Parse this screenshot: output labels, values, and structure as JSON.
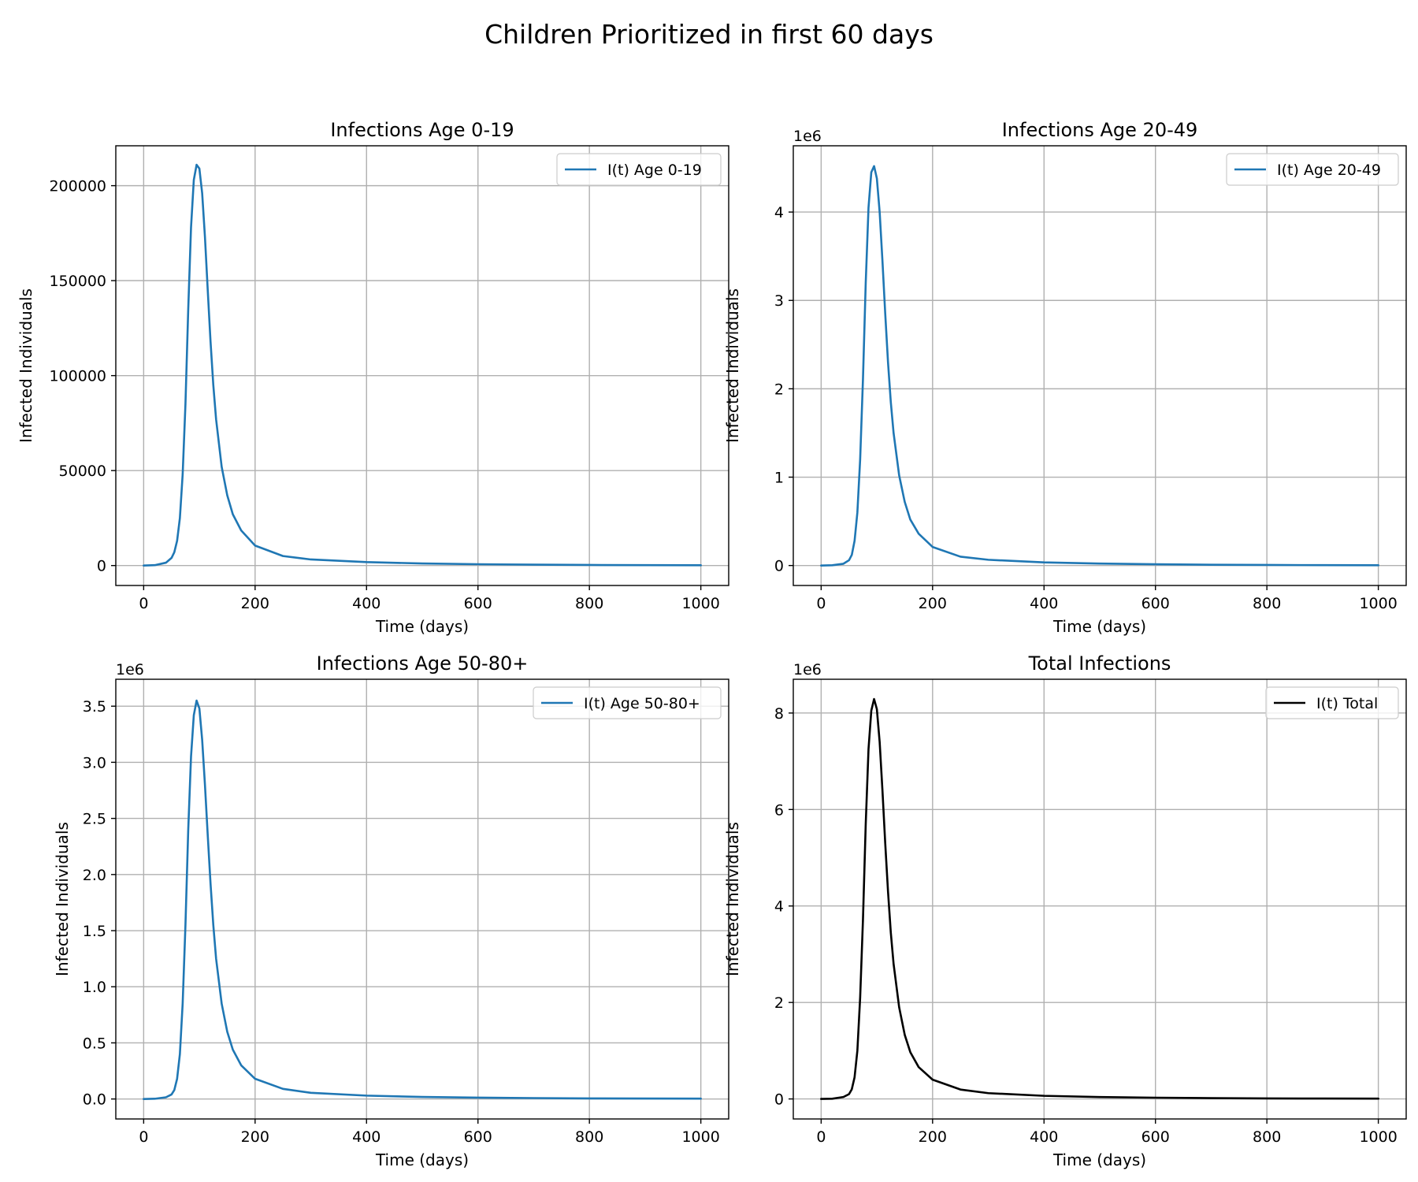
{
  "suptitle": "Children Prioritized in first 60 days",
  "colors": {
    "blue": "#1f77b4",
    "black": "#000000",
    "grid": "#b0b0b0"
  },
  "chart_data": [
    {
      "type": "line",
      "title": "Infections Age 0-19",
      "xlabel": "Time (days)",
      "ylabel": "Infected Individuals",
      "offset_label": "",
      "xlim": [
        -50,
        1050
      ],
      "ylim": [
        -10500,
        221000
      ],
      "x_ticks": [
        0,
        200,
        400,
        600,
        800,
        1000
      ],
      "y_ticks": [
        0,
        50000,
        100000,
        150000,
        200000
      ],
      "y_tick_labels": [
        "0",
        "50000",
        "100000",
        "150000",
        "200000"
      ],
      "grid": true,
      "legend_position": "upper right",
      "series": [
        {
          "name": "I(t) Age 0-19",
          "color": "#1f77b4",
          "x": [
            0,
            20,
            40,
            50,
            55,
            60,
            65,
            70,
            75,
            80,
            85,
            90,
            95,
            100,
            105,
            110,
            115,
            120,
            125,
            130,
            140,
            150,
            160,
            175,
            200,
            250,
            300,
            400,
            500,
            600,
            700,
            800,
            900,
            1000
          ],
          "y": [
            0,
            200,
            1500,
            4000,
            7000,
            13000,
            25000,
            48000,
            85000,
            135000,
            178000,
            203000,
            211000,
            209000,
            196000,
            173000,
            145000,
            118000,
            95000,
            77000,
            52000,
            37000,
            27000,
            18500,
            10500,
            5000,
            3200,
            1800,
            1100,
            700,
            450,
            300,
            200,
            150
          ]
        }
      ]
    },
    {
      "type": "line",
      "title": "Infections Age 20-49",
      "xlabel": "Time (days)",
      "ylabel": "Infected Individuals",
      "offset_label": "1e6",
      "xlim": [
        -50,
        1050
      ],
      "ylim": [
        -0.226,
        4.75
      ],
      "x_ticks": [
        0,
        200,
        400,
        600,
        800,
        1000
      ],
      "y_ticks": [
        0,
        1,
        2,
        3,
        4
      ],
      "y_tick_labels": [
        "0",
        "1",
        "2",
        "3",
        "4"
      ],
      "grid": true,
      "legend_position": "upper right",
      "series": [
        {
          "name": "I(t) Age 20-49",
          "color": "#1f77b4",
          "x": [
            0,
            20,
            40,
            50,
            55,
            60,
            65,
            70,
            75,
            80,
            85,
            90,
            95,
            100,
            105,
            110,
            115,
            120,
            125,
            130,
            140,
            150,
            160,
            175,
            200,
            250,
            300,
            400,
            500,
            600,
            700,
            800,
            900,
            1000
          ],
          "y": [
            0,
            0.003,
            0.02,
            0.06,
            0.12,
            0.28,
            0.6,
            1.2,
            2.1,
            3.2,
            4.05,
            4.45,
            4.52,
            4.38,
            4.0,
            3.45,
            2.85,
            2.3,
            1.85,
            1.5,
            1.02,
            0.72,
            0.52,
            0.36,
            0.21,
            0.1,
            0.065,
            0.035,
            0.022,
            0.014,
            0.009,
            0.006,
            0.004,
            0.003
          ]
        }
      ]
    },
    {
      "type": "line",
      "title": "Infections Age 50-80+",
      "xlabel": "Time (days)",
      "ylabel": "Infected Individuals",
      "offset_label": "1e6",
      "xlim": [
        -50,
        1050
      ],
      "ylim": [
        -0.178,
        3.74
      ],
      "x_ticks": [
        0,
        200,
        400,
        600,
        800,
        1000
      ],
      "y_ticks": [
        0,
        0.5,
        1.0,
        1.5,
        2.0,
        2.5,
        3.0,
        3.5
      ],
      "y_tick_labels": [
        "0.0",
        "0.5",
        "1.0",
        "1.5",
        "2.0",
        "2.5",
        "3.0",
        "3.5"
      ],
      "grid": true,
      "legend_position": "upper right",
      "series": [
        {
          "name": "I(t) Age 50-80+",
          "color": "#1f77b4",
          "x": [
            0,
            20,
            40,
            50,
            55,
            60,
            65,
            70,
            75,
            80,
            85,
            90,
            95,
            100,
            105,
            110,
            115,
            120,
            125,
            130,
            140,
            150,
            160,
            175,
            200,
            250,
            300,
            400,
            500,
            600,
            700,
            800,
            900,
            1000
          ],
          "y": [
            0,
            0.002,
            0.015,
            0.04,
            0.08,
            0.18,
            0.4,
            0.85,
            1.55,
            2.4,
            3.05,
            3.42,
            3.55,
            3.48,
            3.2,
            2.8,
            2.35,
            1.92,
            1.55,
            1.25,
            0.85,
            0.6,
            0.44,
            0.3,
            0.18,
            0.09,
            0.055,
            0.03,
            0.018,
            0.012,
            0.008,
            0.005,
            0.004,
            0.003
          ]
        }
      ]
    },
    {
      "type": "line",
      "title": "Total Infections",
      "xlabel": "Time (days)",
      "ylabel": "Infected Individuals",
      "offset_label": "1e6",
      "xlim": [
        -50,
        1050
      ],
      "ylim": [
        -0.415,
        8.7
      ],
      "x_ticks": [
        0,
        200,
        400,
        600,
        800,
        1000
      ],
      "y_ticks": [
        0,
        2,
        4,
        6,
        8
      ],
      "y_tick_labels": [
        "0",
        "2",
        "4",
        "6",
        "8"
      ],
      "grid": true,
      "legend_position": "upper right",
      "series": [
        {
          "name": "I(t) Total",
          "color": "#000000",
          "x": [
            0,
            20,
            40,
            50,
            55,
            60,
            65,
            70,
            75,
            80,
            85,
            90,
            95,
            100,
            105,
            110,
            115,
            120,
            125,
            130,
            140,
            150,
            160,
            175,
            200,
            250,
            300,
            400,
            500,
            600,
            700,
            800,
            900,
            1000
          ],
          "y": [
            0,
            0.005,
            0.04,
            0.1,
            0.2,
            0.45,
            1.0,
            2.1,
            3.7,
            5.7,
            7.25,
            8.05,
            8.29,
            8.08,
            7.4,
            6.4,
            5.3,
            4.3,
            3.45,
            2.8,
            1.9,
            1.33,
            0.97,
            0.66,
            0.4,
            0.195,
            0.12,
            0.065,
            0.04,
            0.026,
            0.017,
            0.011,
            0.008,
            0.006
          ]
        }
      ]
    }
  ]
}
